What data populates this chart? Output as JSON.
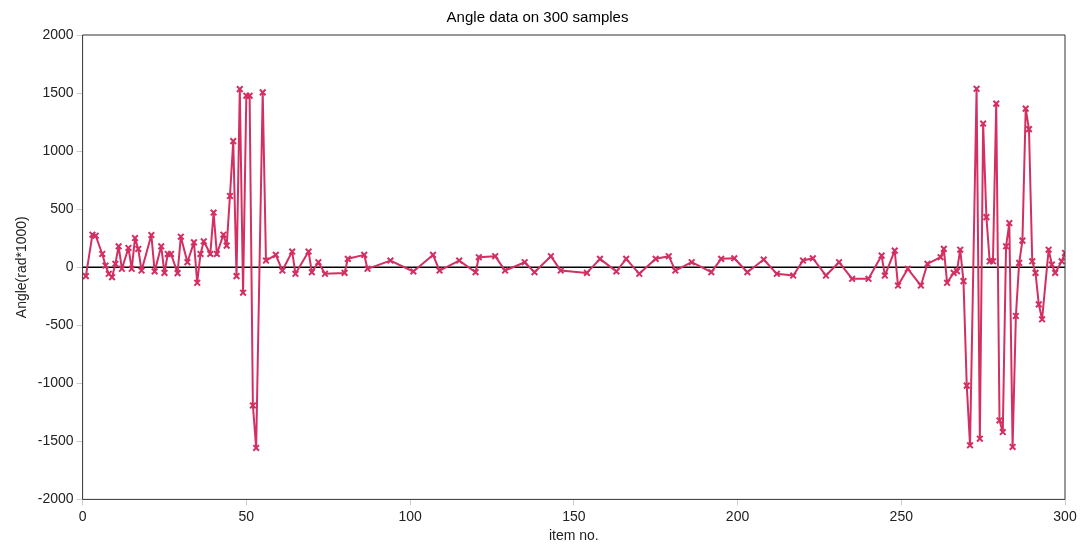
{
  "chart_data": {
    "type": "line",
    "title": "Angle data on 300 samples",
    "xlabel": "item no.",
    "ylabel": "Angle(rad*1000)",
    "xlim": [
      0,
      300
    ],
    "xticks": [
      0,
      50,
      100,
      150,
      200,
      250,
      300
    ],
    "ylim": [
      -2000,
      2000
    ],
    "yticks": [
      -2000,
      -1500,
      -1000,
      -500,
      0,
      500,
      1000,
      1500,
      2000
    ],
    "grid": false,
    "legend": false,
    "marker": "cross",
    "line_style": "solid",
    "ref_lines": [
      {
        "axis": "y",
        "value": 0,
        "color": "#000000"
      }
    ],
    "series": [
      {
        "color": "#d42f62",
        "x": [
          1,
          3,
          4,
          6,
          7,
          8,
          9,
          10,
          11,
          12,
          14,
          15,
          16,
          17,
          18,
          21,
          22,
          24,
          25,
          26,
          27,
          29,
          30,
          32,
          34,
          35,
          36,
          37,
          39,
          40,
          41,
          43,
          44,
          45,
          46,
          47,
          48,
          49,
          50,
          51,
          52,
          53,
          55,
          56,
          59,
          61,
          64,
          65,
          69,
          70,
          72,
          74,
          80,
          81,
          86,
          87,
          94,
          101,
          107,
          109,
          115,
          120,
          121,
          126,
          129,
          135,
          138,
          143,
          146,
          154,
          158,
          163,
          166,
          170,
          175,
          179,
          181,
          186,
          192,
          195,
          199,
          203,
          208,
          212,
          217,
          220,
          223,
          227,
          231,
          235,
          240,
          244,
          245,
          248,
          249,
          252,
          256,
          258,
          262,
          263,
          264,
          266,
          267,
          268,
          269,
          270,
          271,
          273,
          274,
          275,
          276,
          277,
          278,
          279,
          280,
          281,
          282,
          283,
          284,
          285,
          286,
          287,
          288,
          289,
          290,
          291,
          292,
          293,
          295,
          296,
          297,
          299,
          300
        ],
        "values": [
          -77,
          280,
          271,
          114,
          14,
          -57,
          -86,
          29,
          180,
          -14,
          166,
          -14,
          251,
          157,
          -29,
          277,
          -37,
          180,
          -49,
          114,
          114,
          -51,
          263,
          43,
          214,
          -134,
          114,
          223,
          114,
          471,
          114,
          280,
          186,
          614,
          1086,
          -77,
          1534,
          -220,
          1477,
          1477,
          -1191,
          -1557,
          1506,
          57,
          106,
          -29,
          135,
          -57,
          135,
          -43,
          43,
          -57,
          -49,
          72,
          106,
          -14,
          57,
          -37,
          106,
          -29,
          57,
          -43,
          86,
          95,
          -29,
          43,
          -43,
          95,
          -29,
          -49,
          72,
          -37,
          72,
          -57,
          72,
          95,
          -29,
          43,
          -43,
          72,
          77,
          -43,
          66,
          -57,
          -72,
          57,
          77,
          -72,
          43,
          -100,
          -100,
          100,
          -72,
          143,
          -158,
          -14,
          -158,
          29,
          86,
          158,
          -134,
          -49,
          -34,
          151,
          -120,
          -1020,
          -1534,
          1537,
          -1477,
          1237,
          431,
          51,
          51,
          1409,
          -1320,
          -1420,
          180,
          380,
          -1548,
          -420,
          37,
          229,
          1366,
          1189,
          51,
          -49,
          -320,
          -449,
          151,
          23,
          -49,
          51,
          123
        ]
      }
    ]
  }
}
